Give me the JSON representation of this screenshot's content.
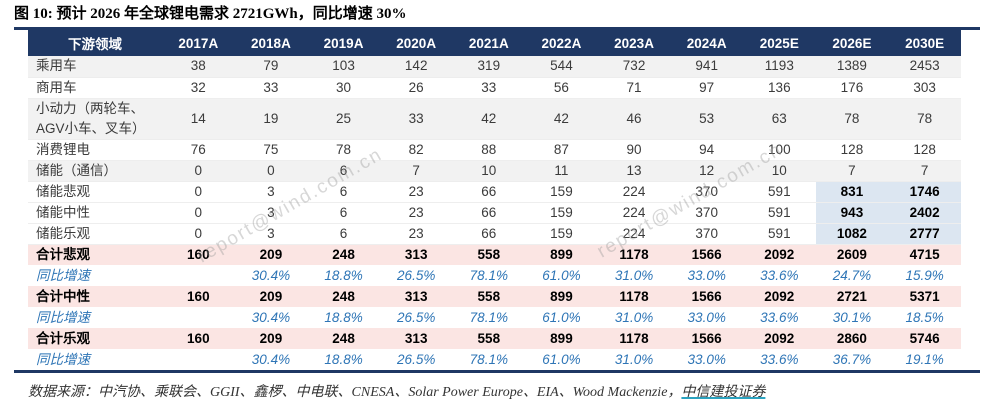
{
  "title": "图 10: 预计 2026 年全球锂电需求 2721GWh，同比增速 30%",
  "watermark": "report@wind.com.cn",
  "colors": {
    "header_bg": "#1f3864",
    "total_row_bg": "#fbe5e3",
    "highlight_cell_bg": "#dce6f1",
    "stripe_bg": "#f2f2f2",
    "growth_text": "#2e75b6",
    "rule": "#1f3864",
    "link_underline": "#2ba3c0"
  },
  "chart_data": {
    "type": "table",
    "title": "预计 2026 年全球锂电需求 2721GWh，同比增速 30%"
  },
  "table": {
    "columns": [
      "下游领域",
      "2017A",
      "2018A",
      "2019A",
      "2020A",
      "2021A",
      "2022A",
      "2023A",
      "2024A",
      "2025E",
      "2026E",
      "2030E"
    ],
    "rows": [
      {
        "label": "乘用车",
        "kind": "normal",
        "stripe": true,
        "values": [
          "38",
          "79",
          "103",
          "142",
          "319",
          "544",
          "732",
          "941",
          "1193",
          "1389",
          "2453"
        ]
      },
      {
        "label": "商用车",
        "kind": "normal",
        "stripe": false,
        "values": [
          "32",
          "33",
          "30",
          "26",
          "33",
          "56",
          "71",
          "97",
          "136",
          "176",
          "303"
        ]
      },
      {
        "label": "小动力（两轮车、AGV小车、叉车）",
        "kind": "normal",
        "stripe": true,
        "values": [
          "14",
          "19",
          "25",
          "33",
          "42",
          "42",
          "46",
          "53",
          "63",
          "78",
          "78"
        ]
      },
      {
        "label": "消费锂电",
        "kind": "normal",
        "stripe": false,
        "values": [
          "76",
          "75",
          "78",
          "82",
          "88",
          "87",
          "90",
          "94",
          "100",
          "128",
          "128"
        ]
      },
      {
        "label": "储能（通信）",
        "kind": "normal",
        "stripe": true,
        "values": [
          "0",
          "0",
          "6",
          "7",
          "10",
          "11",
          "13",
          "12",
          "10",
          "7",
          "7"
        ]
      },
      {
        "label": "储能悲观",
        "kind": "storage",
        "stripe": false,
        "values": [
          "0",
          "3",
          "6",
          "23",
          "66",
          "159",
          "224",
          "370",
          "591",
          "831",
          "1746"
        ]
      },
      {
        "label": "储能中性",
        "kind": "storage",
        "stripe": false,
        "values": [
          "0",
          "3",
          "6",
          "23",
          "66",
          "159",
          "224",
          "370",
          "591",
          "943",
          "2402"
        ]
      },
      {
        "label": "储能乐观",
        "kind": "storage",
        "stripe": false,
        "values": [
          "0",
          "3",
          "6",
          "23",
          "66",
          "159",
          "224",
          "370",
          "591",
          "1082",
          "2777"
        ]
      },
      {
        "label": "合计悲观",
        "kind": "total",
        "stripe": false,
        "values": [
          "160",
          "209",
          "248",
          "313",
          "558",
          "899",
          "1178",
          "1566",
          "2092",
          "2609",
          "4715"
        ]
      },
      {
        "label": "同比增速",
        "kind": "growth",
        "stripe": false,
        "values": [
          "",
          "30.4%",
          "18.8%",
          "26.5%",
          "78.1%",
          "61.0%",
          "31.0%",
          "33.0%",
          "33.6%",
          "24.7%",
          "15.9%"
        ]
      },
      {
        "label": "合计中性",
        "kind": "total",
        "stripe": false,
        "values": [
          "160",
          "209",
          "248",
          "313",
          "558",
          "899",
          "1178",
          "1566",
          "2092",
          "2721",
          "5371"
        ]
      },
      {
        "label": "同比增速",
        "kind": "growth",
        "stripe": false,
        "values": [
          "",
          "30.4%",
          "18.8%",
          "26.5%",
          "78.1%",
          "61.0%",
          "31.0%",
          "33.0%",
          "33.6%",
          "30.1%",
          "18.5%"
        ]
      },
      {
        "label": "合计乐观",
        "kind": "total",
        "stripe": false,
        "values": [
          "160",
          "209",
          "248",
          "313",
          "558",
          "899",
          "1178",
          "1566",
          "2092",
          "2860",
          "5746"
        ]
      },
      {
        "label": "同比增速",
        "kind": "growth",
        "stripe": false,
        "values": [
          "",
          "30.4%",
          "18.8%",
          "26.5%",
          "78.1%",
          "61.0%",
          "31.0%",
          "33.0%",
          "33.6%",
          "36.7%",
          "19.1%"
        ]
      }
    ],
    "highlight_columns": [
      "2026E",
      "2030E"
    ]
  },
  "source": {
    "prefix": "数据来源：中汽协、乘联会、GGII、鑫椤、中电联、CNESA、Solar Power Europe、EIA、Wood Mackenzie，",
    "link": "中信建投证券"
  }
}
